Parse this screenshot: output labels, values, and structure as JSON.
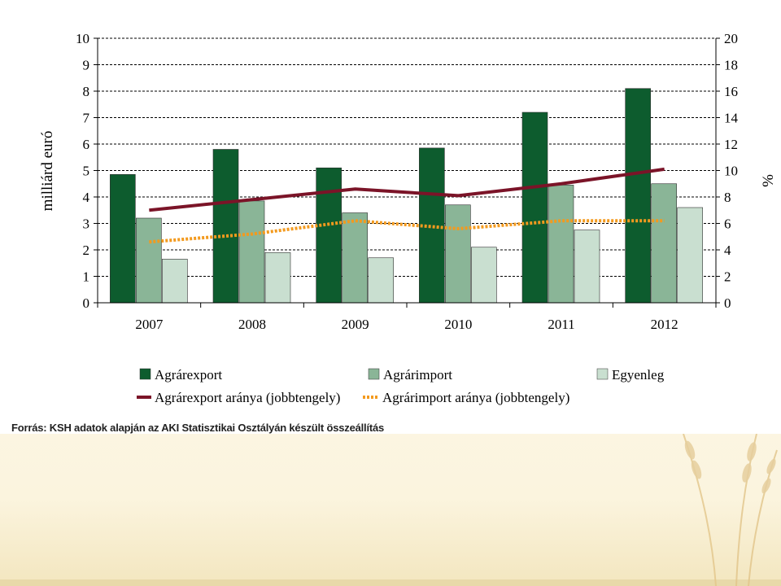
{
  "chart_data": {
    "type": "bar",
    "categories": [
      "2007",
      "2008",
      "2009",
      "2010",
      "2011",
      "2012"
    ],
    "series": [
      {
        "name": "Agrárexport",
        "kind": "bar",
        "axis": "left",
        "color": "#0d5c2e",
        "values": [
          4.85,
          5.8,
          5.1,
          5.85,
          7.2,
          8.1
        ]
      },
      {
        "name": "Agrárimport",
        "kind": "bar",
        "axis": "left",
        "color": "#8ab597",
        "values": [
          3.2,
          3.85,
          3.4,
          3.7,
          4.45,
          4.5
        ]
      },
      {
        "name": "Egyenleg",
        "kind": "bar",
        "axis": "left",
        "color": "#c9dfd0",
        "values": [
          1.65,
          1.9,
          1.7,
          2.1,
          2.75,
          3.6
        ]
      },
      {
        "name": "Agrárexport aránya (jobbtengely)",
        "kind": "line",
        "axis": "right",
        "color": "#7b1428",
        "dash": "solid",
        "values": [
          7.0,
          7.8,
          8.6,
          8.1,
          9.0,
          10.1
        ]
      },
      {
        "name": "Agrárimport aránya (jobbtengely)",
        "kind": "line",
        "axis": "right",
        "color": "#f39a1e",
        "dash": "dotted",
        "values": [
          4.6,
          5.2,
          6.2,
          5.6,
          6.2,
          6.2
        ]
      }
    ],
    "ylabel": "milliárd euró",
    "y2label": "%",
    "ylim": [
      0,
      10
    ],
    "y2lim": [
      0,
      20
    ],
    "yticks": [
      "0",
      "1",
      "2",
      "3",
      "4",
      "5",
      "6",
      "7",
      "8",
      "9",
      "10"
    ],
    "y2ticks": [
      "0",
      "2",
      "4",
      "6",
      "8",
      "10",
      "12",
      "14",
      "16",
      "18",
      "20"
    ],
    "grid": "horizontal dashed",
    "legend_placement": "bottom"
  },
  "source": "Forrás: KSH adatok alapján az AKI Statisztikai Osztályán készült összeállítás"
}
